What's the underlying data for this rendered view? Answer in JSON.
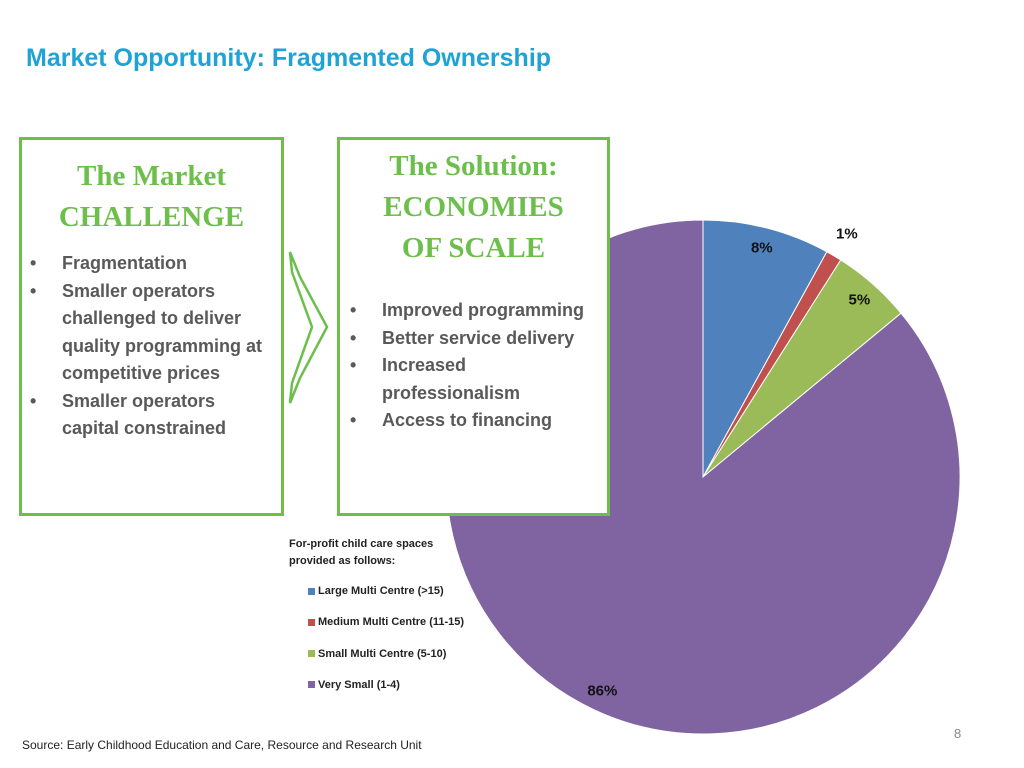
{
  "slide_title": "Market Opportunity: Fragmented Ownership",
  "left_box": {
    "title": [
      "The Market",
      "CHALLENGE"
    ],
    "bullets": [
      "Fragmentation",
      "Smaller operators challenged to deliver quality programming at competitive prices",
      "Smaller operators capital constrained"
    ]
  },
  "right_box": {
    "title": [
      "The Solution:",
      "ECONOMIES",
      "OF SCALE"
    ],
    "bullets": [
      "Improved programming",
      "Better service delivery",
      "Increased professionalism",
      "Access to financing"
    ]
  },
  "source": "Source: Early Childhood Education and Care, Resource and Research Unit",
  "page_number": "8",
  "chart_data": {
    "type": "pie",
    "title": "For-profit child care spaces provided as follows:",
    "categories": [
      "Large Multi Centre (>15)",
      "Medium Multi Centre (11-15)",
      "Small Multi Centre (5-10)",
      "Very Small (1-4)"
    ],
    "values": [
      8,
      1,
      5,
      86
    ],
    "value_labels": [
      "8%",
      "1%",
      "5%",
      "86%"
    ],
    "colors": [
      "#4f81bd",
      "#c0504d",
      "#9bbb59",
      "#8064a2"
    ]
  }
}
